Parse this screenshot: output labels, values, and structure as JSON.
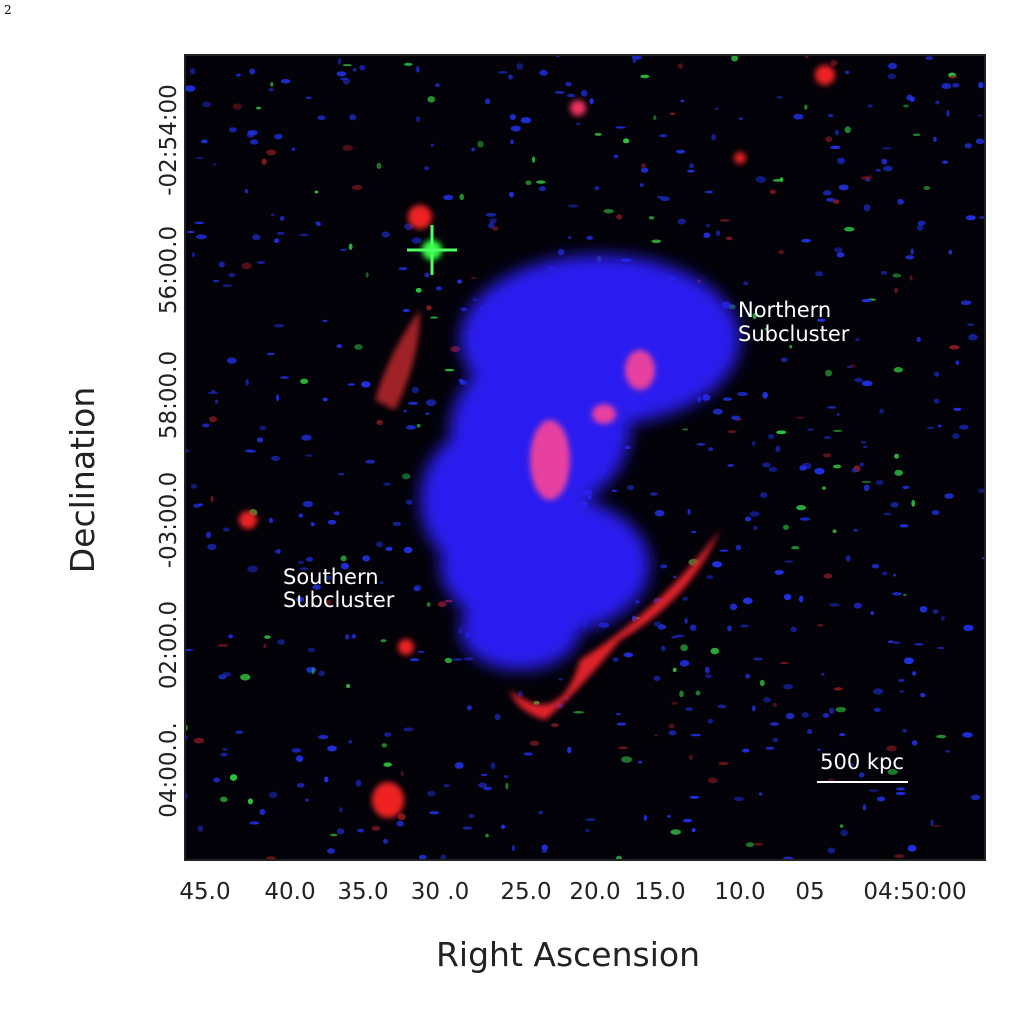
{
  "page_number": "2",
  "figure": {
    "y_axis": {
      "label": "Declination",
      "ticks": [
        "-02:54:00",
        "56:00.0",
        "58:00.0",
        "-03:00.0",
        "02:00.0",
        "04:00.0."
      ]
    },
    "x_axis": {
      "label": "Right Ascension",
      "ticks": [
        "45.0",
        "40.0",
        "35.0",
        "30 .0",
        "25.0",
        "20.0",
        "15.0",
        "10.0",
        "05",
        "04:50:00"
      ]
    },
    "annotations": {
      "northern": [
        "Northern",
        "Subcluster"
      ],
      "southern": [
        "Southern",
        "Subcluster"
      ]
    },
    "scale_bar": "500 kpc"
  }
}
